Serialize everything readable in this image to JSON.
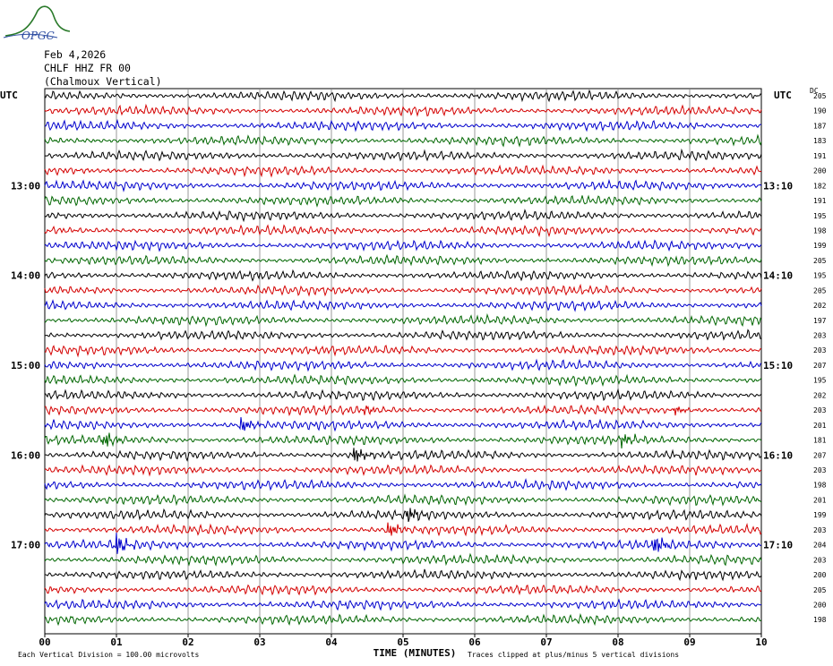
{
  "logo": {
    "text": "OPGC",
    "color": "#2a7a2a"
  },
  "header": {
    "date": "Feb 4,2026",
    "station": "CHLF HHZ FR 00",
    "component": "(Chalmoux Vertical)"
  },
  "colors": {
    "black": "#000000",
    "red": "#d40000",
    "blue": "#0000cc",
    "green": "#006600",
    "grid": "#808080"
  },
  "chart_data": {
    "type": "line",
    "left_axis_title": "UTC",
    "right_axis_title": "UTC",
    "dc_label": "DC",
    "x_axis": {
      "label": "TIME (MINUTES)",
      "ticks": [
        "00",
        "01",
        "02",
        "03",
        "04",
        "05",
        "06",
        "07",
        "08",
        "09",
        "10"
      ],
      "range": [
        0,
        10
      ]
    },
    "left_hour_labels": [
      {
        "row": 6,
        "text": "13:00"
      },
      {
        "row": 12,
        "text": "14:00"
      },
      {
        "row": 18,
        "text": "15:00"
      },
      {
        "row": 24,
        "text": "16:00"
      },
      {
        "row": 30,
        "text": "17:00"
      }
    ],
    "right_hour_labels": [
      {
        "row": 6,
        "text": "13:10"
      },
      {
        "row": 12,
        "text": "14:10"
      },
      {
        "row": 18,
        "text": "15:10"
      },
      {
        "row": 24,
        "text": "16:10"
      },
      {
        "row": 30,
        "text": "17:10"
      }
    ],
    "trace_color_cycle": [
      "black",
      "red",
      "blue",
      "green"
    ],
    "dc_offsets": [
      205,
      190,
      187,
      183,
      191,
      200,
      182,
      191,
      195,
      198,
      199,
      205,
      195,
      205,
      202,
      197,
      203,
      203,
      207,
      195,
      202,
      203,
      201,
      181,
      207,
      203,
      198,
      201,
      199,
      203,
      204,
      203,
      200,
      205,
      200,
      198
    ],
    "events": [
      {
        "row": 22,
        "minute": 2.75,
        "amplitude": 2.2
      },
      {
        "row": 23,
        "minute": 0.82,
        "amplitude": 2.0
      },
      {
        "row": 23,
        "minute": 8.05,
        "amplitude": 2.0
      },
      {
        "row": 24,
        "minute": 4.32,
        "amplitude": 2.0
      },
      {
        "row": 28,
        "minute": 5.08,
        "amplitude": 2.0
      },
      {
        "row": 29,
        "minute": 4.8,
        "amplitude": 2.0
      },
      {
        "row": 30,
        "minute": 1.0,
        "amplitude": 2.2
      },
      {
        "row": 30,
        "minute": 8.5,
        "amplitude": 2.6
      },
      {
        "row": 21,
        "minute": 4.48,
        "amplitude": 1.0
      },
      {
        "row": 21,
        "minute": 8.8,
        "amplitude": 1.0
      }
    ],
    "footer": {
      "scale": "Each Vertical Division =  100.00 microvolts",
      "clip_note": "Traces clipped at plus/minus 5 vertical divisions"
    }
  }
}
